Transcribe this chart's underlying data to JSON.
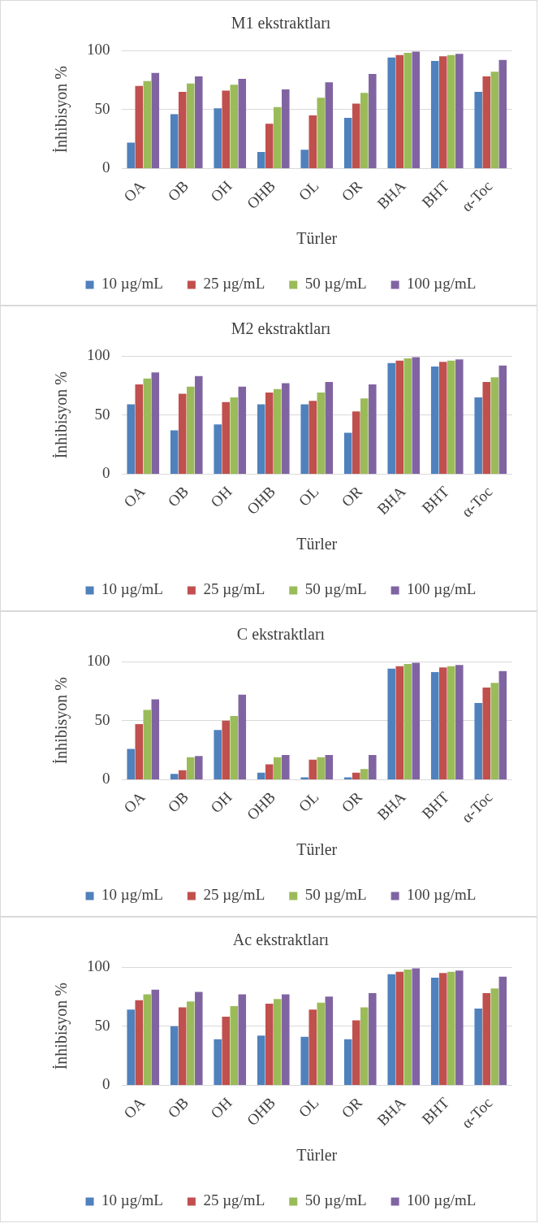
{
  "chart_data": [
    {
      "type": "bar",
      "title": "M1 ekstraktları",
      "xlabel": "Türler",
      "ylabel": "İnhibisyon %",
      "categories": [
        "OA",
        "OB",
        "OH",
        "OHB",
        "OL",
        "OR",
        "BHA",
        "BHT",
        "α-Toc"
      ],
      "ylim": [
        0,
        100
      ],
      "yticks": [
        0,
        50,
        100
      ],
      "grid": "y",
      "legend": "bottom",
      "series": [
        {
          "name": "10 µg/mL",
          "color": "#4f81bd",
          "values": [
            22,
            46,
            51,
            14,
            16,
            43,
            94,
            91,
            65
          ]
        },
        {
          "name": "25 µg/mL",
          "color": "#c0504d",
          "values": [
            70,
            65,
            66,
            38,
            45,
            55,
            96,
            95,
            78
          ]
        },
        {
          "name": "50 µg/mL",
          "color": "#9bbb59",
          "values": [
            74,
            72,
            71,
            52,
            60,
            64,
            98,
            96,
            82
          ]
        },
        {
          "name": "100 µg/mL",
          "color": "#8064a2",
          "values": [
            81,
            78,
            76,
            67,
            73,
            80,
            99,
            97,
            92
          ]
        }
      ]
    },
    {
      "type": "bar",
      "title": "M2 ekstraktları",
      "xlabel": "Türler",
      "ylabel": "İnhibisyon %",
      "categories": [
        "OA",
        "OB",
        "OH",
        "OHB",
        "OL",
        "OR",
        "BHA",
        "BHT",
        "α-Toc"
      ],
      "ylim": [
        0,
        100
      ],
      "yticks": [
        0,
        50,
        100
      ],
      "grid": "y",
      "legend": "bottom",
      "series": [
        {
          "name": "10 µg/mL",
          "color": "#4f81bd",
          "values": [
            59,
            37,
            42,
            59,
            59,
            35,
            94,
            91,
            65
          ]
        },
        {
          "name": "25 µg/mL",
          "color": "#c0504d",
          "values": [
            76,
            68,
            61,
            69,
            62,
            53,
            96,
            95,
            78
          ]
        },
        {
          "name": "50 µg/mL",
          "color": "#9bbb59",
          "values": [
            81,
            74,
            65,
            72,
            69,
            64,
            98,
            96,
            82
          ]
        },
        {
          "name": "100 µg/mL",
          "color": "#8064a2",
          "values": [
            86,
            83,
            74,
            77,
            78,
            76,
            99,
            97,
            92
          ]
        }
      ]
    },
    {
      "type": "bar",
      "title": "C ekstraktları",
      "xlabel": "Türler",
      "ylabel": "İnhibisyon %",
      "categories": [
        "OA",
        "OB",
        "OH",
        "OHB",
        "OL",
        "OR",
        "BHA",
        "BHT",
        "α-Toc"
      ],
      "ylim": [
        0,
        100
      ],
      "yticks": [
        0,
        50,
        100
      ],
      "grid": "y",
      "legend": "bottom",
      "series": [
        {
          "name": "10 µg/mL",
          "color": "#4f81bd",
          "values": [
            26,
            5,
            42,
            6,
            2,
            2,
            94,
            91,
            65
          ]
        },
        {
          "name": "25 µg/mL",
          "color": "#c0504d",
          "values": [
            47,
            8,
            50,
            13,
            17,
            6,
            96,
            95,
            78
          ]
        },
        {
          "name": "50 µg/mL",
          "color": "#9bbb59",
          "values": [
            59,
            19,
            54,
            19,
            19,
            9,
            98,
            96,
            82
          ]
        },
        {
          "name": "100 µg/mL",
          "color": "#8064a2",
          "values": [
            68,
            20,
            72,
            21,
            21,
            21,
            99,
            97,
            92
          ]
        }
      ]
    },
    {
      "type": "bar",
      "title": "Ac ekstraktları",
      "xlabel": "Türler",
      "ylabel": "İnhibisyon %",
      "categories": [
        "OA",
        "OB",
        "OH",
        "OHB",
        "OL",
        "OR",
        "BHA",
        "BHT",
        "α-Toc"
      ],
      "ylim": [
        0,
        100
      ],
      "yticks": [
        0,
        50,
        100
      ],
      "grid": "y",
      "legend": "bottom",
      "series": [
        {
          "name": "10 µg/mL",
          "color": "#4f81bd",
          "values": [
            64,
            50,
            39,
            42,
            41,
            39,
            94,
            91,
            65
          ]
        },
        {
          "name": "25 µg/mL",
          "color": "#c0504d",
          "values": [
            72,
            66,
            58,
            69,
            64,
            55,
            96,
            95,
            78
          ]
        },
        {
          "name": "50 µg/mL",
          "color": "#9bbb59",
          "values": [
            77,
            71,
            67,
            73,
            70,
            66,
            98,
            96,
            82
          ]
        },
        {
          "name": "100 µg/mL",
          "color": "#8064a2",
          "values": [
            81,
            79,
            77,
            77,
            75,
            78,
            99,
            97,
            92
          ]
        }
      ]
    }
  ]
}
